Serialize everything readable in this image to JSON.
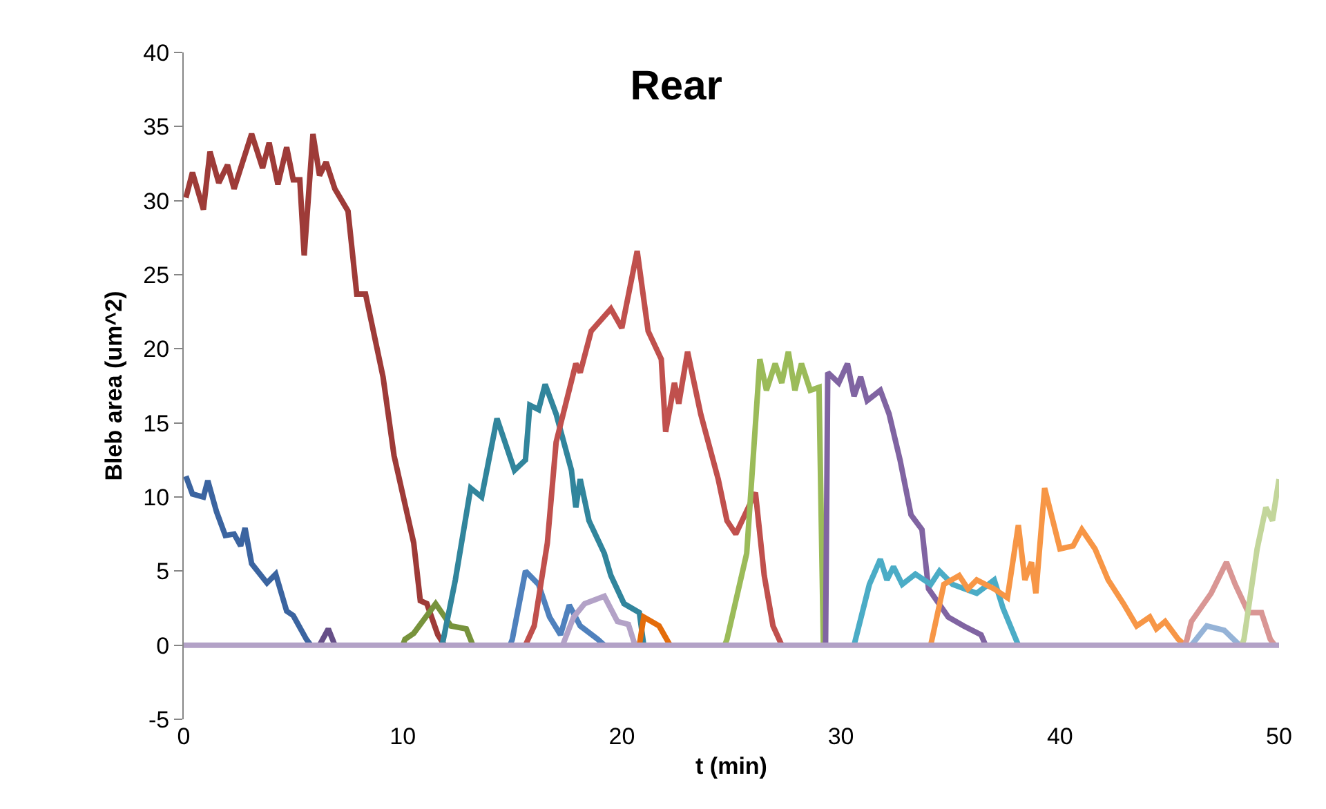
{
  "chart_data": {
    "type": "line",
    "title": "Rear",
    "xlabel": "t (min)",
    "ylabel": "Bleb area (um^2)",
    "xlim": [
      0,
      50
    ],
    "ylim": [
      -5,
      40
    ],
    "xticks": [
      0,
      10,
      20,
      30,
      40,
      50
    ],
    "yticks": [
      -5,
      0,
      5,
      10,
      15,
      20,
      25,
      30,
      35,
      40
    ],
    "marker": "none",
    "line_style": "solid",
    "series": [
      {
        "color": "#3b64a0",
        "x": [
          0.1,
          0.4,
          0.9,
          1.1,
          1.5,
          1.9,
          2.3,
          2.6,
          2.8,
          3.1,
          3.8,
          4.2,
          4.7,
          5.0,
          5.6,
          5.8
        ],
        "values": [
          11.4,
          10.2,
          10,
          11.1,
          9,
          7.4,
          7.5,
          6.7,
          7.9,
          5.5,
          4.2,
          4.8,
          2.3,
          2,
          0.4,
          0
        ]
      },
      {
        "color": "#9e3b38",
        "x": [
          0.1,
          0.4,
          0.9,
          1.2,
          1.6,
          2.0,
          2.3,
          3.1,
          3.6,
          3.9,
          4.3,
          4.7,
          5.0,
          5.3,
          5.5,
          5.9,
          6.2,
          6.5,
          6.9,
          7.5,
          7.9,
          8.3,
          9.1,
          9.6,
          10.5,
          10.8,
          11.1,
          11.6,
          11.9
        ],
        "values": [
          30.2,
          31.9,
          29.4,
          33.3,
          31.2,
          32.4,
          30.8,
          34.5,
          32.2,
          33.9,
          31.1,
          33.6,
          31.4,
          31.4,
          26.3,
          34.5,
          31.7,
          32.6,
          30.8,
          29.3,
          23.7,
          23.7,
          18.1,
          12.8,
          6.9,
          3,
          2.8,
          0.7,
          0
        ]
      },
      {
        "color": "#664f88",
        "x": [
          6.2,
          6.6,
          6.9
        ],
        "values": [
          0,
          1.1,
          0
        ]
      },
      {
        "color": "#77933c",
        "x": [
          10.0,
          10.1,
          10.5,
          11.5,
          12.2,
          12.9,
          13.2
        ],
        "values": [
          0,
          0.4,
          0.8,
          2.8,
          1.3,
          1.1,
          0
        ]
      },
      {
        "color": "#31859c",
        "x": [
          11.8,
          12.4,
          13.1,
          13.6,
          14.3,
          15.1,
          15.6,
          15.8,
          16.2,
          16.5,
          17.0,
          17.7,
          17.9,
          18.1,
          18.5,
          19.2,
          19.5,
          20.1,
          20.8,
          21.0
        ],
        "values": [
          0,
          4.4,
          10.6,
          10,
          15.3,
          11.8,
          12.5,
          16.2,
          15.9,
          17.6,
          15.6,
          11.8,
          9.3,
          11.2,
          8.4,
          6.2,
          4.7,
          2.8,
          2.2,
          0
        ]
      },
      {
        "color": "#4f81bd",
        "x": [
          14.9,
          15.0,
          15.6,
          16.2,
          16.7,
          17.2,
          17.6,
          18.1,
          18.9,
          19.2
        ],
        "values": [
          0,
          0.4,
          5,
          4.1,
          1.9,
          0.7,
          2.7,
          1.3,
          0.4,
          0
        ]
      },
      {
        "color": "#c0504d",
        "x": [
          15.6,
          16.0,
          16.6,
          17.0,
          17.9,
          18.1,
          18.6,
          19.5,
          20.0,
          20.7,
          21.2,
          21.8,
          22.0,
          22.4,
          22.6,
          23.0,
          23.6,
          24.4,
          24.8,
          25.2,
          26.1,
          26.5,
          26.9,
          27.3
        ],
        "values": [
          0,
          1.3,
          6.9,
          13.7,
          19,
          18.4,
          21.2,
          22.7,
          21.4,
          26.6,
          21.2,
          19.3,
          14.4,
          17.7,
          16.3,
          19.8,
          15.6,
          11.2,
          8.4,
          7.5,
          10.3,
          4.7,
          1.3,
          0
        ]
      },
      {
        "color": "#b3a2c7",
        "x": [
          17.3,
          17.8,
          18.3,
          19.2,
          19.8,
          20.3,
          20.6
        ],
        "values": [
          0,
          1.9,
          2.8,
          3.3,
          1.6,
          1.4,
          0
        ]
      },
      {
        "color": "#e46c0a",
        "x": [
          20.8,
          21.0,
          21.7,
          22.2
        ],
        "values": [
          0,
          1.9,
          1.3,
          0
        ]
      },
      {
        "color": "#9bbb59",
        "x": [
          24.7,
          24.8,
          25.7,
          26.3,
          26.6,
          27.0,
          27.3,
          27.6,
          27.9,
          28.2,
          28.6,
          29.0,
          29.2
        ],
        "values": [
          0,
          0.4,
          6.2,
          19.3,
          17.2,
          19,
          17.7,
          19.8,
          17.2,
          19,
          17.2,
          17.4,
          0
        ]
      },
      {
        "color": "#8064a2",
        "x": [
          29.3,
          29.4,
          29.9,
          30.3,
          30.6,
          30.9,
          31.2,
          31.8,
          32.2,
          32.7,
          33.2,
          33.7,
          34.0,
          34.9,
          35.6,
          36.4,
          36.6
        ],
        "values": [
          0,
          18.4,
          17.7,
          19,
          16.8,
          18.1,
          16.5,
          17.2,
          15.6,
          12.5,
          8.8,
          7.8,
          3.8,
          1.9,
          1.3,
          0.7,
          0
        ]
      },
      {
        "color": "#4bacc6",
        "x": [
          30.6,
          31.3,
          31.8,
          32.1,
          32.4,
          32.8,
          33.4,
          34.1,
          34.5,
          35.1,
          36.2,
          37.0,
          37.4,
          38.1
        ],
        "values": [
          0,
          4.1,
          5.8,
          4.4,
          5.3,
          4.1,
          4.8,
          4.1,
          5,
          4.1,
          3.5,
          4.4,
          2.5,
          0
        ]
      },
      {
        "color": "#f79646",
        "x": [
          34.1,
          34.7,
          35.4,
          35.8,
          36.2,
          37.0,
          37.6,
          38.1,
          38.4,
          38.7,
          38.9,
          39.3,
          40.0,
          40.6,
          41.0,
          41.6,
          42.2,
          42.9,
          43.5,
          44.1,
          44.4,
          44.8,
          45.4,
          45.7
        ],
        "values": [
          0,
          4.1,
          4.7,
          3.8,
          4.4,
          3.8,
          3.2,
          8.1,
          4.4,
          5.6,
          3.5,
          10.6,
          6.5,
          6.7,
          7.8,
          6.5,
          4.4,
          2.8,
          1.3,
          1.9,
          1.1,
          1.6,
          0.4,
          0
        ]
      },
      {
        "color": "#d99694",
        "x": [
          45.7,
          45.8,
          46.0,
          46.9,
          47.6,
          48.0,
          48.6,
          49.2,
          49.6,
          49.8
        ],
        "values": [
          0,
          0.4,
          1.6,
          3.5,
          5.6,
          4.1,
          2.2,
          2.2,
          0.4,
          0
        ]
      },
      {
        "color": "#95b3d7",
        "x": [
          46.0,
          46.7,
          47.5,
          48.2
        ],
        "values": [
          0,
          1.3,
          1,
          0
        ]
      },
      {
        "color": "#c3d69b",
        "x": [
          48.3,
          48.4,
          49.0,
          49.4,
          49.7,
          50.0
        ],
        "values": [
          0,
          0.4,
          6.5,
          9.3,
          8.4,
          11.2
        ]
      },
      {
        "color": "#b3a2c7",
        "x": [
          0,
          50
        ],
        "values": [
          0,
          0
        ]
      }
    ]
  }
}
